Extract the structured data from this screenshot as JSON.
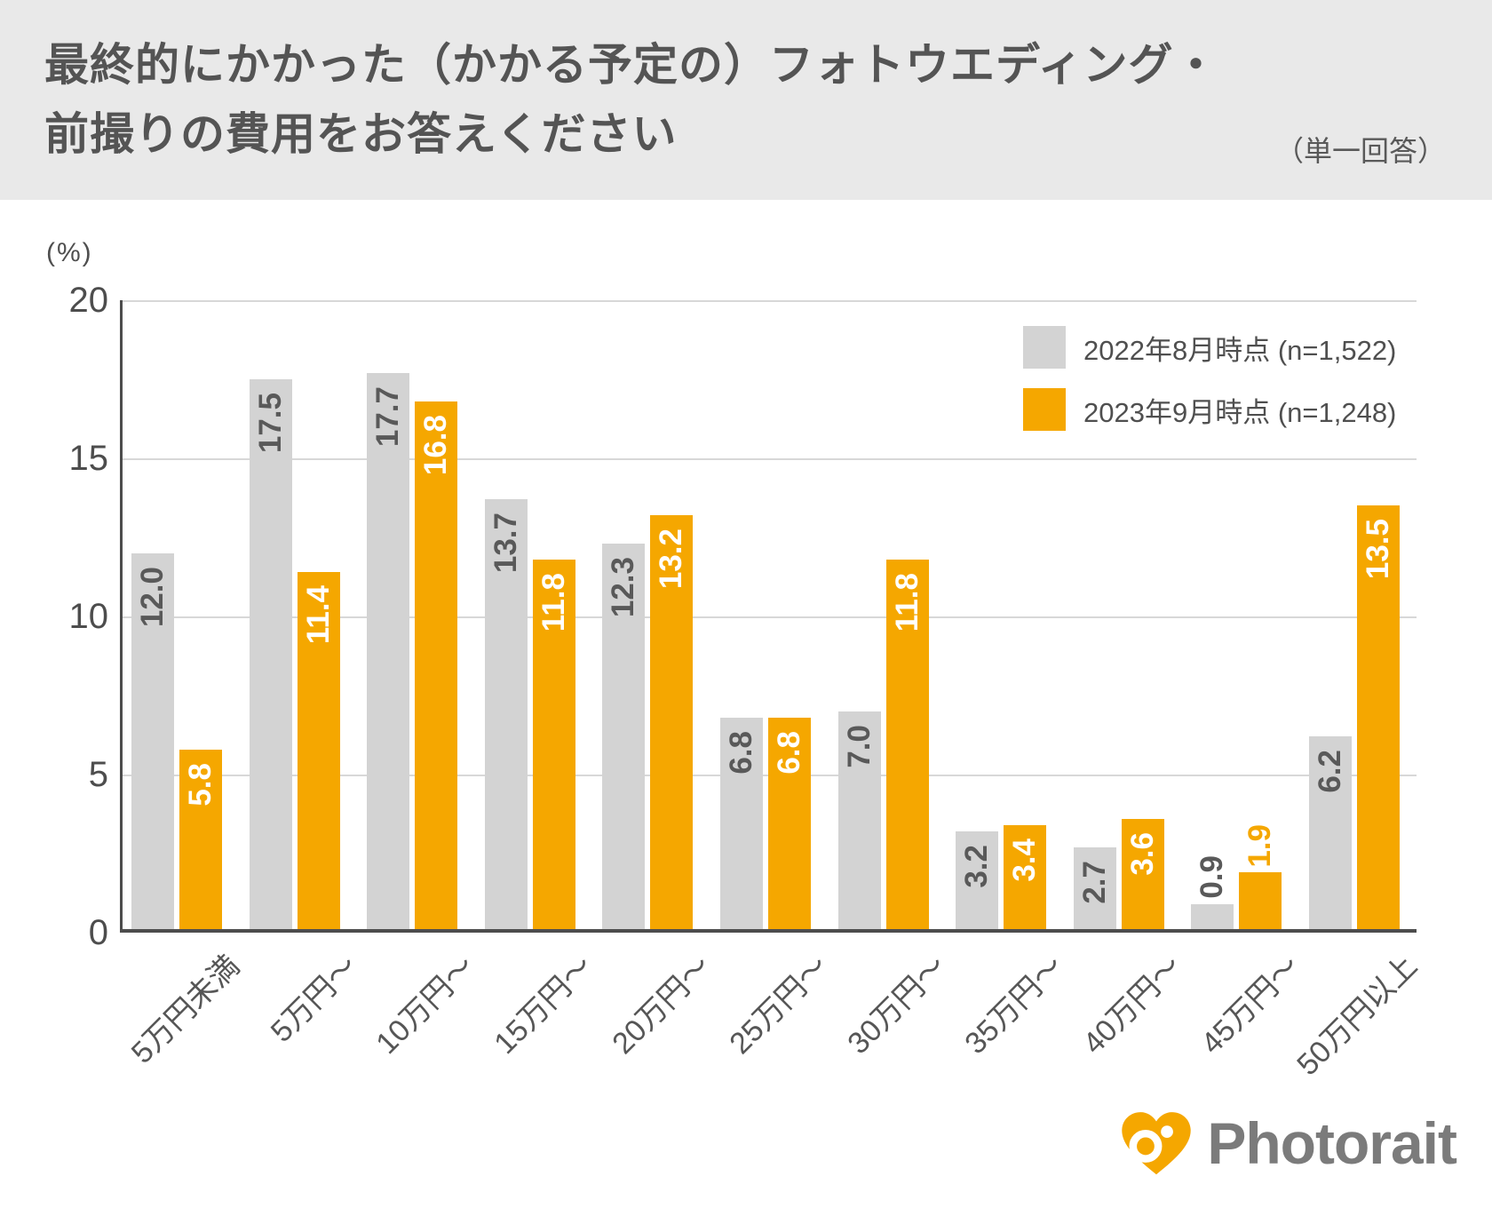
{
  "header": {
    "title_line1": "最終的にかかった（かかる予定の）フォトウエディング・",
    "title_line2": "前撮りの費用をお答えください",
    "note": "（単一回答）"
  },
  "chart_data": {
    "type": "bar",
    "title": "最終的にかかった（かかる予定の）フォトウエディング・前撮りの費用をお答えください（単一回答）",
    "unit_label": "(%)",
    "xlabel": "",
    "ylabel": "(%)",
    "ylim": [
      0,
      20
    ],
    "yticks": [
      0,
      5,
      10,
      15,
      20
    ],
    "grid": true,
    "legend_position": "top-right",
    "categories": [
      "5万円未満",
      "5万円～",
      "10万円～",
      "15万円～",
      "20万円～",
      "25万円～",
      "30万円～",
      "35万円～",
      "40万円～",
      "45万円～",
      "50万円以上"
    ],
    "series": [
      {
        "name": "2022年8月時点 (n=1,522)",
        "color": "#d3d3d3",
        "inside_label_color": "#595959",
        "outside_label_color": "#595959",
        "values": [
          12.0,
          17.5,
          17.7,
          13.7,
          12.3,
          6.8,
          7.0,
          3.2,
          2.7,
          0.9,
          6.2
        ]
      },
      {
        "name": "2023年9月時点 (n=1,248)",
        "color": "#f5a700",
        "inside_label_color": "#ffffff",
        "outside_label_color": "#f5a700",
        "values": [
          5.8,
          11.4,
          16.8,
          11.8,
          13.2,
          6.8,
          11.8,
          3.4,
          3.6,
          1.9,
          13.5
        ]
      }
    ]
  },
  "colors": {
    "header_background": "#e9e9e9",
    "title_text": "#545454",
    "axis_line": "#4d4d4d",
    "gridline": "#d8d8d8",
    "tick_text": "#4d4d4d",
    "accent_orange": "#f5a700",
    "series_gray": "#d3d3d3",
    "logo_text": "#7b7b7b"
  },
  "footer": {
    "brand": "Photorait"
  }
}
